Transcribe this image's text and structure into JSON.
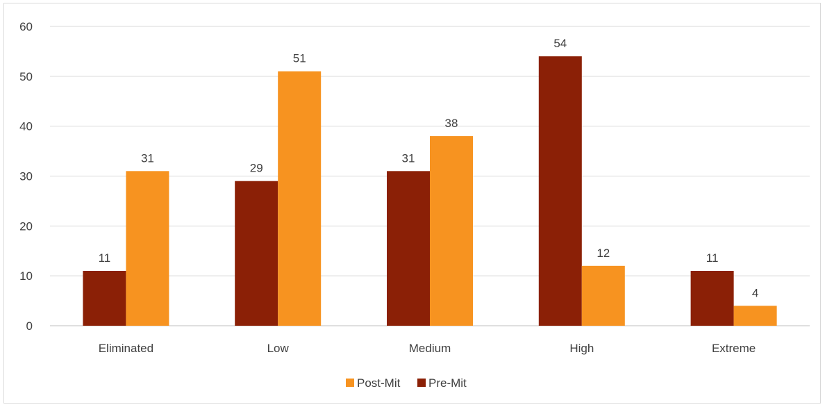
{
  "chart_data": {
    "type": "bar",
    "categories": [
      "Eliminated",
      "Low",
      "Medium",
      "High",
      "Extreme"
    ],
    "series": [
      {
        "name": "Pre-Mit",
        "values": [
          11,
          29,
          31,
          54,
          11
        ],
        "color": "#8b2006"
      },
      {
        "name": "Post-Mit",
        "values": [
          31,
          51,
          38,
          12,
          4
        ],
        "color": "#f79320"
      }
    ],
    "ylim": [
      0,
      60
    ],
    "yticks": [
      0,
      10,
      20,
      30,
      40,
      50,
      60
    ],
    "grid": true,
    "legend_placement": "bottom",
    "legend_order": [
      "Post-Mit",
      "Pre-Mit"
    ],
    "data_labels": true
  }
}
